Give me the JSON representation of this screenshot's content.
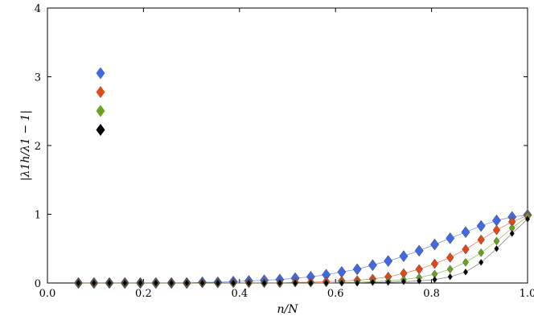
{
  "chart_data": {
    "type": "scatter",
    "title": "",
    "xlabel": "n/N",
    "ylabel": "|λ1h/λ1 − 1|",
    "xlim": [
      0.0,
      1.0
    ],
    "ylim": [
      0,
      4
    ],
    "x_ticks": [
      "0.0",
      "0.2",
      "0.4",
      "0.6",
      "0.8",
      "1.0"
    ],
    "y_ticks": [
      "0",
      "1",
      "2",
      "3",
      "4"
    ],
    "grid": false,
    "legend": {
      "placement": "upper-left",
      "show_text": false
    },
    "x": [
      0.0645,
      0.0968,
      0.129,
      0.1613,
      0.1935,
      0.2258,
      0.2581,
      0.2903,
      0.3226,
      0.3548,
      0.3871,
      0.4194,
      0.4516,
      0.4839,
      0.5161,
      0.5484,
      0.5806,
      0.6129,
      0.6452,
      0.6774,
      0.7097,
      0.7419,
      0.7742,
      0.8065,
      0.8387,
      0.871,
      0.9032,
      0.9355,
      0.9677,
      1.0
    ],
    "series": [
      {
        "color": "#4169e1",
        "marker_size": "large",
        "values": [
          0.0,
          0.0,
          0.0,
          0.0,
          0.0,
          0.0,
          0.0,
          0.0,
          0.01,
          0.01,
          0.02,
          0.03,
          0.04,
          0.05,
          0.07,
          0.09,
          0.12,
          0.16,
          0.2,
          0.26,
          0.32,
          0.39,
          0.47,
          0.56,
          0.65,
          0.74,
          0.83,
          0.91,
          0.96,
          0.99
        ]
      },
      {
        "color": "#e04a1a",
        "marker_size": "medium",
        "values": [
          0.0,
          0.0,
          0.0,
          0.0,
          0.0,
          0.0,
          0.0,
          0.0,
          0.0,
          0.0,
          0.0,
          0.0,
          0.0,
          0.0,
          0.01,
          0.01,
          0.02,
          0.03,
          0.04,
          0.06,
          0.09,
          0.14,
          0.2,
          0.28,
          0.37,
          0.49,
          0.63,
          0.77,
          0.89,
          0.98
        ]
      },
      {
        "color": "#6aa121",
        "marker_size": "small",
        "values": [
          0.0,
          0.0,
          0.0,
          0.0,
          0.0,
          0.0,
          0.0,
          0.0,
          0.0,
          0.0,
          0.0,
          0.0,
          0.0,
          0.0,
          0.0,
          0.0,
          0.0,
          0.01,
          0.01,
          0.02,
          0.03,
          0.05,
          0.08,
          0.13,
          0.2,
          0.3,
          0.44,
          0.61,
          0.8,
          0.97
        ]
      },
      {
        "color": "#000000",
        "marker_size": "tiny",
        "values": [
          0.0,
          0.0,
          0.0,
          0.0,
          0.0,
          0.0,
          0.0,
          0.0,
          0.0,
          0.0,
          0.0,
          0.0,
          0.0,
          0.0,
          0.0,
          0.0,
          0.0,
          0.0,
          0.0,
          0.01,
          0.01,
          0.02,
          0.03,
          0.05,
          0.09,
          0.16,
          0.3,
          0.5,
          0.72,
          0.93
        ]
      }
    ]
  }
}
